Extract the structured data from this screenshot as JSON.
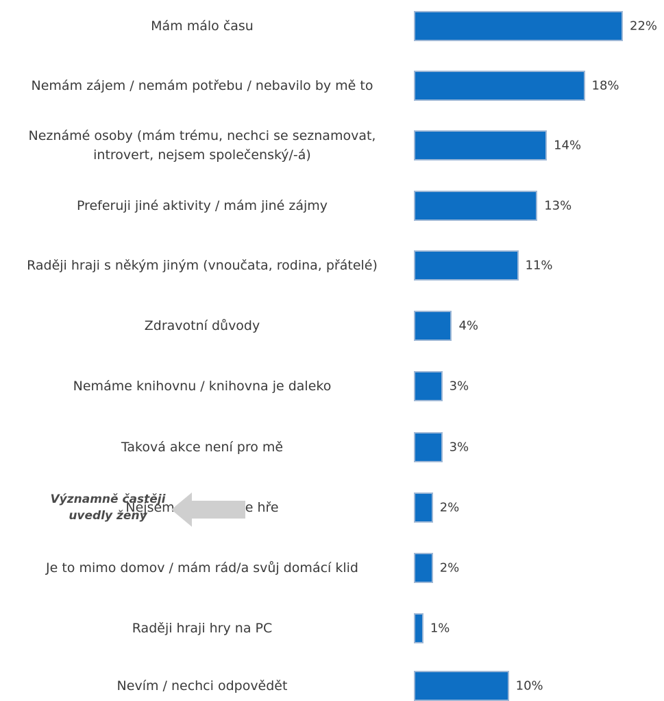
{
  "chart_data": {
    "type": "bar",
    "orientation": "horizontal",
    "categories": [
      "Mám málo času",
      "Nemám zájem / nemám potřebu / nebavilo by mě to",
      "Neznámé osoby (mám trému, nechci se seznamovat, introvert, nejsem společenský/-á)",
      "Preferuji jiné aktivity / mám jiné zájmy",
      "Raději hraji s někým jiným (vnoučata, rodina, přátelé)",
      "Zdravotní důvody",
      "Nemáme knihovnu / knihovna je daleko",
      "Taková akce není pro mě",
      "Nejsem dobrý/-á ve hře",
      "Je to mimo domov / mám rád/a svůj domácí klid",
      "Raději hraji hry na PC",
      "Nevím / nechci odpovědět"
    ],
    "values": [
      22,
      18,
      14,
      13,
      11,
      4,
      3,
      3,
      2,
      2,
      1,
      10
    ],
    "value_labels": [
      "22%",
      "18%",
      "14%",
      "13%",
      "11%",
      "4%",
      "3%",
      "3%",
      "2%",
      "2%",
      "1%",
      "10%"
    ],
    "bar_color": "#0e6fc4",
    "annotations": [
      {
        "text": "Významně častěji uvedly ženy",
        "target_category": "Nejsem dobrý/-á ve hře"
      }
    ]
  }
}
